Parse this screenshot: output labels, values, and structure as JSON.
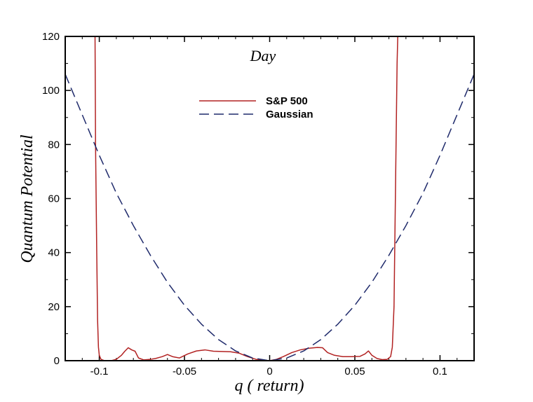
{
  "chart_data": {
    "type": "line",
    "title": "Day",
    "xlabel": "q ( return)",
    "ylabel": "Quantum Potential",
    "xlim": [
      -0.12,
      0.12
    ],
    "ylim": [
      0,
      120
    ],
    "xticks": [
      -0.1,
      -0.05,
      0,
      0.05,
      0.1
    ],
    "xtick_labels": [
      "-0.1",
      "-0.05",
      "0",
      "0.05",
      "0.1"
    ],
    "yticks": [
      0,
      20,
      40,
      60,
      80,
      100,
      120
    ],
    "ytick_labels": [
      "0",
      "20",
      "40",
      "60",
      "80",
      "100",
      "120"
    ],
    "legend_position": "top-center",
    "grid": false,
    "series": [
      {
        "name": "S&P 500",
        "color": "#b22222",
        "style": "solid",
        "x": [
          -0.1025,
          -0.1022,
          -0.1015,
          -0.101,
          -0.1005,
          -0.1,
          -0.099,
          -0.097,
          -0.093,
          -0.09,
          -0.087,
          -0.085,
          -0.083,
          -0.081,
          -0.079,
          -0.077,
          -0.074,
          -0.07,
          -0.067,
          -0.063,
          -0.06,
          -0.057,
          -0.053,
          -0.048,
          -0.043,
          -0.038,
          -0.033,
          -0.028,
          -0.023,
          -0.018,
          -0.013,
          -0.008,
          -0.004,
          0.0,
          0.004,
          0.008,
          0.013,
          0.018,
          0.023,
          0.028,
          0.031,
          0.034,
          0.038,
          0.043,
          0.048,
          0.053,
          0.056,
          0.058,
          0.06,
          0.063,
          0.066,
          0.069,
          0.071,
          0.072,
          0.073,
          0.0735,
          0.0742,
          0.0748,
          0.0752
        ],
        "y": [
          120,
          80,
          40,
          15,
          5,
          2,
          0.5,
          0,
          0,
          0.5,
          2,
          3.5,
          4.8,
          4.0,
          3.5,
          1.0,
          0.3,
          0.5,
          0.8,
          1.5,
          2.3,
          1.5,
          1.0,
          2.5,
          3.6,
          4.0,
          3.5,
          3.4,
          3.3,
          2.8,
          1.5,
          0.5,
          0.2,
          0,
          0.5,
          1.5,
          3.0,
          4.0,
          4.6,
          4.9,
          4.8,
          3.0,
          2.0,
          1.5,
          1.5,
          1.6,
          2.5,
          3.6,
          2.0,
          0.8,
          0.4,
          0.5,
          1.5,
          5.0,
          20,
          45,
          80,
          110,
          120
        ]
      },
      {
        "name": "Gaussian",
        "color": "#1f2a6b",
        "style": "dashed",
        "x": [
          -0.12,
          -0.11,
          -0.1,
          -0.09,
          -0.08,
          -0.07,
          -0.06,
          -0.05,
          -0.04,
          -0.03,
          -0.02,
          -0.01,
          0.0,
          0.01,
          0.02,
          0.03,
          0.04,
          0.05,
          0.06,
          0.07,
          0.08,
          0.09,
          0.1,
          0.11,
          0.12
        ],
        "y": [
          106,
          91,
          76,
          62,
          50,
          39,
          29,
          20.5,
          13.5,
          7.8,
          3.6,
          1.0,
          0,
          1.0,
          3.6,
          7.8,
          13.5,
          20.5,
          29,
          39,
          50,
          62,
          76,
          91,
          106
        ]
      }
    ]
  }
}
